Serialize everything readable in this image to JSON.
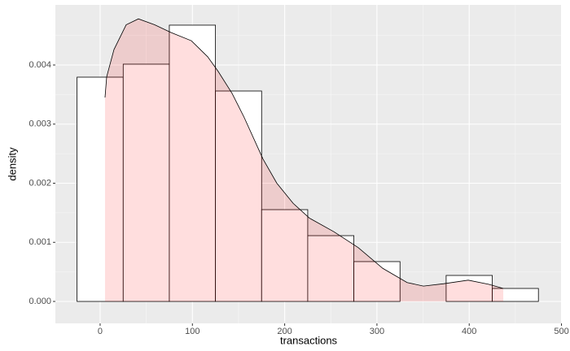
{
  "chart_data": {
    "type": "histogram",
    "xlabel": "transactions",
    "ylabel": "density",
    "bins": [
      -25,
      25,
      75,
      125,
      175,
      225,
      275,
      325,
      375,
      425,
      475
    ],
    "values": [
      0.003794,
      0.004014,
      0.004674,
      0.00356,
      0.001553,
      0.001113,
      0.000674,
      0,
      0.00044,
      0.00022
    ],
    "bar_fill": "#ffffff",
    "bar_outline": "#000000",
    "density": {
      "x": [
        5.3,
        7.1,
        15,
        28.2,
        41.5,
        59.1,
        76.8,
        98.9,
        116.5,
        128,
        143,
        156.2,
        176.5,
        191.5,
        209.2,
        226.8,
        253.3,
        279.8,
        306.3,
        332.7,
        350.4,
        372.5,
        398.9,
        421,
        436.9
      ],
      "y": [
        0.00345,
        0.0038,
        0.00426,
        0.00468,
        0.00478,
        0.00468,
        0.00455,
        0.00441,
        0.00414,
        0.00389,
        0.00352,
        0.00311,
        0.00241,
        0.002,
        0.00166,
        0.00141,
        0.00118,
        0.00091,
        0.00056,
        0.00032,
        0.00026,
        0.0003,
        0.00036,
        0.00029,
        0.00022
      ],
      "fill": "#ff0000",
      "line_color": "#000000"
    },
    "xlim": [
      -48.5,
      500.4
    ],
    "ylim": [
      -0.000371,
      0.005017
    ],
    "xticks": [
      0,
      100,
      200,
      300,
      400,
      500
    ],
    "yticks": [
      {
        "value": 0,
        "label": "0.000"
      },
      {
        "value": 0.001,
        "label": "0.001"
      },
      {
        "value": 0.002,
        "label": "0.002"
      },
      {
        "value": 0.003,
        "label": "0.003"
      },
      {
        "value": 0.004,
        "label": "0.004"
      }
    ],
    "grid": true
  }
}
